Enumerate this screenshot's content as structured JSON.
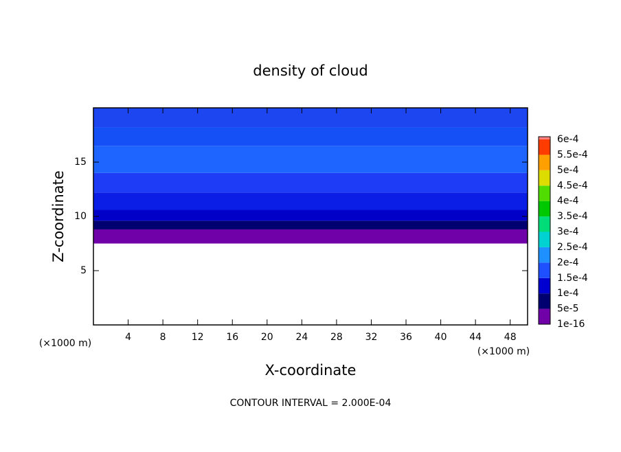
{
  "chart_data": {
    "type": "contour",
    "title": "density of cloud",
    "x_label": "X-coordinate",
    "y_label": "Z-coordinate",
    "x_unit_labels": [
      "(×1000 m)",
      "(×1000 m)"
    ],
    "footer": "CONTOUR INTERVAL = 2.000E-04",
    "xlim": [
      0,
      50
    ],
    "xticks": [
      4,
      8,
      12,
      16,
      20,
      24,
      28,
      32,
      36,
      40,
      44,
      48
    ],
    "ylim": [
      0,
      20
    ],
    "yticks": [
      5,
      10,
      15
    ],
    "bands": [
      {
        "z": [
          7.5,
          8.8
        ],
        "color": "#7000a8"
      },
      {
        "z": [
          8.8,
          9.6
        ],
        "color": "#000070"
      },
      {
        "z": [
          9.6,
          10.6
        ],
        "color": "#0000c8"
      },
      {
        "z": [
          10.6,
          12.2
        ],
        "color": "#0a1ee6"
      },
      {
        "z": [
          12.2,
          14.0
        ],
        "color": "#1e3cf5"
      },
      {
        "z": [
          14.0,
          16.5
        ],
        "color": "#1e64ff"
      },
      {
        "z": [
          16.5,
          18.2
        ],
        "color": "#1450f5"
      },
      {
        "z": [
          18.2,
          20
        ],
        "color": "#1e46f0"
      }
    ],
    "colorbar": {
      "levels": [
        {
          "value": 1e-16,
          "label": "1e-16"
        },
        {
          "value": 5e-05,
          "label": "5e-5"
        },
        {
          "value": 0.0001,
          "label": "1e-4"
        },
        {
          "value": 0.00015,
          "label": "1.5e-4"
        },
        {
          "value": 0.0002,
          "label": "2e-4"
        },
        {
          "value": 0.00025,
          "label": "2.5e-4"
        },
        {
          "value": 0.0003,
          "label": "3e-4"
        },
        {
          "value": 0.00035,
          "label": "3.5e-4"
        },
        {
          "value": 0.0004,
          "label": "4e-4"
        },
        {
          "value": 0.00045,
          "label": "4.5e-4"
        },
        {
          "value": 0.0005,
          "label": "5e-4"
        },
        {
          "value": 0.00055,
          "label": "5.5e-4"
        },
        {
          "value": 0.0006,
          "label": "6e-4"
        }
      ],
      "colors": [
        "#7000a8",
        "#000070",
        "#0000d0",
        "#1e50ff",
        "#1e90ff",
        "#00d2d2",
        "#00dc78",
        "#00c800",
        "#50dc00",
        "#dcdc00",
        "#ffa000",
        "#ff3c00",
        "#ff8080"
      ]
    }
  }
}
